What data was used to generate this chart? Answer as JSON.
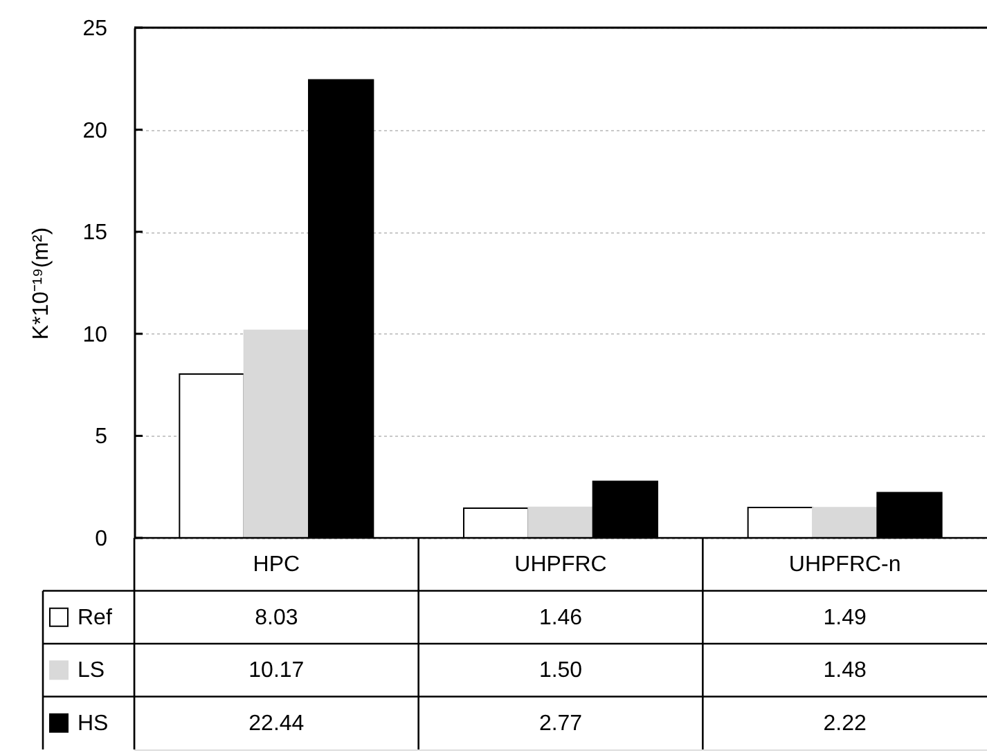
{
  "chart_data": {
    "type": "bar",
    "ylabel": "K*10⁻¹⁹(m²)",
    "categories": [
      "HPC",
      "UHPFRC",
      "UHPFRC-n"
    ],
    "series": [
      {
        "name": "Ref",
        "color": "#ffffff",
        "values": [
          8.03,
          1.46,
          1.49
        ],
        "value_labels": [
          "8.03",
          "1.46",
          "1.49"
        ]
      },
      {
        "name": "LS",
        "color": "#d9d9d9",
        "values": [
          10.17,
          1.5,
          1.48
        ],
        "value_labels": [
          "10.17",
          "1.50",
          "1.48"
        ]
      },
      {
        "name": "HS",
        "color": "#000000",
        "values": [
          22.44,
          2.77,
          2.22
        ],
        "value_labels": [
          "22.44",
          "2.77",
          "2.22"
        ]
      }
    ],
    "ylim": [
      0,
      25
    ],
    "yticks": [
      0,
      5,
      10,
      15,
      20,
      25
    ],
    "grid": "y",
    "legend": "bottom left"
  }
}
